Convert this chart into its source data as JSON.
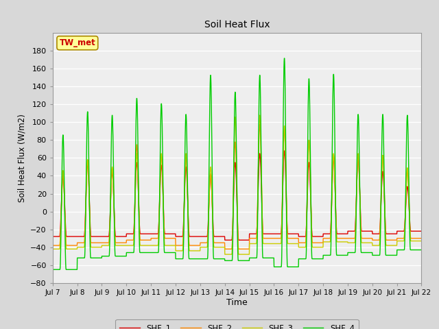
{
  "title": "Soil Heat Flux",
  "xlabel": "Time",
  "ylabel": "Soil Heat Flux (W/m2)",
  "ylim": [
    -80,
    200
  ],
  "yticks": [
    -80,
    -60,
    -40,
    -20,
    0,
    20,
    40,
    60,
    80,
    100,
    120,
    140,
    160,
    180
  ],
  "xtick_labels": [
    "Jul 7",
    "Jul 8",
    "Jul 9",
    "Jul 10",
    "Jul 11",
    "Jul 12",
    "Jul 13",
    "Jul 14",
    "Jul 15",
    "Jul 16",
    "Jul 17",
    "Jul 18",
    "Jul 19",
    "Jul 20",
    "Jul 21",
    "Jul 22"
  ],
  "annotation_text": "TW_met",
  "annotation_color": "#cc0000",
  "annotation_bg": "#ffff99",
  "annotation_border": "#aa8800",
  "colors": {
    "SHF_1": "#dd0000",
    "SHF_2": "#ff8800",
    "SHF_3": "#cccc00",
    "SHF_4": "#00cc00"
  },
  "bg_color": "#d8d8d8",
  "plot_bg_color": "#eeeeee",
  "line_width": 1.0,
  "n_days": 15,
  "ppd": 144
}
